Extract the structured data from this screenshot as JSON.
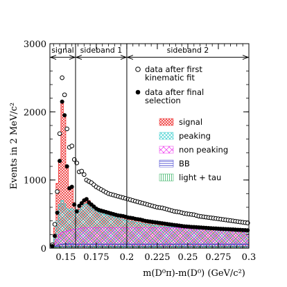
{
  "chart_data": {
    "type": "histogram",
    "title": "",
    "ylabel": "Events in 2 MeV/c²",
    "xlabel": "m(D⁰π)-m(D⁰) (GeV/c²)",
    "xlim": [
      0.137,
      0.3
    ],
    "ylim": [
      0,
      3000
    ],
    "x_ticks": [
      {
        "value": 0.15,
        "label": "0.15"
      },
      {
        "value": 0.175,
        "label": "0.175"
      },
      {
        "value": 0.2,
        "label": "0.2"
      },
      {
        "value": 0.225,
        "label": "0.225"
      },
      {
        "value": 0.25,
        "label": "0.25"
      },
      {
        "value": 0.275,
        "label": "0.275"
      },
      {
        "value": 0.3,
        "label": "0.3"
      }
    ],
    "y_ticks": [
      {
        "value": 0,
        "label": "0"
      },
      {
        "value": 1000,
        "label": "1000"
      },
      {
        "value": 2000,
        "label": "2000"
      },
      {
        "value": 3000,
        "label": "3000"
      }
    ],
    "regions": [
      {
        "label": "signal",
        "x_start": 0.137,
        "x_end": 0.158
      },
      {
        "label": "sideband 1",
        "x_start": 0.158,
        "x_end": 0.2
      },
      {
        "label": "sideband 2",
        "x_start": 0.2,
        "x_end": 0.3
      }
    ],
    "region_bracket_y": 2800,
    "region_dividers": [
      0.158,
      0.2
    ],
    "legend": {
      "markers": [
        {
          "key": "open",
          "lines": [
            "data after first",
            "kinematic fit"
          ]
        },
        {
          "key": "filled",
          "lines": [
            "data after final",
            "selection"
          ]
        }
      ],
      "fills": [
        {
          "key": "signal",
          "label": "signal",
          "color": "#ee3333"
        },
        {
          "key": "peaking",
          "label": "peaking",
          "color": "#33cccc"
        },
        {
          "key": "nonpeaking",
          "label": "non peaking",
          "color": "#ee33ee"
        },
        {
          "key": "bb",
          "label": "BB",
          "color": "#3333cc"
        },
        {
          "key": "light",
          "label": "light + tau",
          "color": "#22aa55"
        }
      ]
    },
    "x": [
      0.139,
      0.141,
      0.143,
      0.145,
      0.147,
      0.149,
      0.151,
      0.153,
      0.155,
      0.157,
      0.159,
      0.161,
      0.163,
      0.165,
      0.167,
      0.169,
      0.171,
      0.173,
      0.175,
      0.177,
      0.179,
      0.181,
      0.183,
      0.185,
      0.187,
      0.189,
      0.191,
      0.193,
      0.195,
      0.197,
      0.199,
      0.201,
      0.203,
      0.205,
      0.207,
      0.209,
      0.211,
      0.213,
      0.215,
      0.217,
      0.219,
      0.221,
      0.223,
      0.225,
      0.227,
      0.229,
      0.231,
      0.233,
      0.235,
      0.237,
      0.239,
      0.241,
      0.243,
      0.245,
      0.247,
      0.249,
      0.251,
      0.253,
      0.255,
      0.257,
      0.259,
      0.261,
      0.263,
      0.265,
      0.267,
      0.269,
      0.271,
      0.273,
      0.275,
      0.277,
      0.279,
      0.281,
      0.283,
      0.285,
      0.287,
      0.289,
      0.291,
      0.293,
      0.295,
      0.297,
      0.299
    ],
    "series": [
      {
        "name": "data after first kinematic fit",
        "marker": "open",
        "values": [
          50,
          350,
          830,
          1680,
          2500,
          2250,
          1750,
          1480,
          1500,
          1300,
          1250,
          1120,
          1130,
          1080,
          1000,
          980,
          960,
          930,
          900,
          880,
          860,
          840,
          820,
          800,
          790,
          780,
          770,
          760,
          750,
          740,
          730,
          720,
          710,
          700,
          690,
          680,
          670,
          660,
          650,
          640,
          630,
          620,
          610,
          600,
          595,
          590,
          580,
          570,
          560,
          550,
          540,
          535,
          530,
          520,
          510,
          505,
          500,
          495,
          490,
          480,
          470,
          465,
          460,
          455,
          450,
          445,
          440,
          435,
          430,
          425,
          420,
          415,
          410,
          405,
          400,
          395,
          390,
          385,
          380,
          375,
          370
        ]
      },
      {
        "name": "data after final selection",
        "marker": "filled",
        "values": [
          30,
          180,
          520,
          1280,
          2150,
          1950,
          1200,
          880,
          900,
          640,
          540,
          620,
          660,
          700,
          720,
          670,
          640,
          610,
          580,
          560,
          550,
          540,
          530,
          520,
          510,
          500,
          490,
          480,
          475,
          470,
          460,
          450,
          445,
          440,
          430,
          425,
          420,
          410,
          400,
          395,
          390,
          385,
          380,
          375,
          370,
          365,
          360,
          355,
          350,
          345,
          340,
          335,
          330,
          325,
          320,
          318,
          315,
          312,
          310,
          308,
          305,
          302,
          300,
          298,
          295,
          292,
          290,
          288,
          286,
          284,
          282,
          280,
          278,
          276,
          274,
          272,
          270,
          268,
          266,
          264,
          262
        ]
      },
      {
        "name": "light + tau",
        "fill": "light",
        "stack_top": true,
        "values": [
          5,
          10,
          15,
          18,
          20,
          20,
          20,
          20,
          20,
          20,
          20,
          20,
          20,
          20,
          20,
          20,
          20,
          20,
          20,
          20,
          20,
          20,
          20,
          20,
          20,
          20,
          20,
          20,
          20,
          20,
          20,
          20,
          20,
          20,
          20,
          20,
          20,
          20,
          20,
          20,
          20,
          20,
          20,
          20,
          20,
          20,
          20,
          20,
          20,
          20,
          20,
          20,
          20,
          20,
          20,
          20,
          20,
          20,
          20,
          20,
          20,
          20,
          20,
          20,
          20,
          20,
          20,
          20,
          20,
          20,
          20,
          20,
          20,
          20,
          20,
          20,
          20,
          20,
          20,
          20,
          20
        ]
      },
      {
        "name": "BB",
        "fill": "bb",
        "stack_top": true,
        "values": [
          10,
          25,
          40,
          55,
          60,
          62,
          62,
          62,
          62,
          60,
          60,
          60,
          60,
          60,
          60,
          60,
          60,
          60,
          60,
          60,
          60,
          60,
          60,
          60,
          60,
          60,
          60,
          60,
          60,
          60,
          60,
          60,
          60,
          60,
          60,
          60,
          60,
          60,
          60,
          60,
          60,
          60,
          60,
          60,
          60,
          60,
          60,
          60,
          60,
          60,
          60,
          60,
          60,
          60,
          60,
          60,
          60,
          60,
          60,
          60,
          60,
          60,
          60,
          60,
          60,
          60,
          60,
          60,
          60,
          60,
          60,
          60,
          60,
          60,
          60,
          60,
          60,
          60,
          60,
          60,
          60
        ]
      },
      {
        "name": "non peaking",
        "fill": "nonpeaking",
        "stack_top": true,
        "values": [
          20,
          70,
          130,
          200,
          230,
          240,
          250,
          260,
          270,
          280,
          280,
          290,
          295,
          300,
          300,
          300,
          300,
          300,
          300,
          300,
          300,
          300,
          300,
          300,
          300,
          300,
          300,
          300,
          300,
          300,
          300,
          300,
          300,
          300,
          300,
          300,
          300,
          300,
          300,
          300,
          300,
          300,
          300,
          300,
          300,
          300,
          300,
          300,
          300,
          300,
          300,
          298,
          296,
          294,
          292,
          290,
          288,
          286,
          284,
          282,
          280,
          278,
          276,
          274,
          272,
          270,
          268,
          266,
          264,
          262,
          260,
          258,
          256,
          254,
          252,
          250,
          248,
          246,
          244,
          242,
          240
        ]
      },
      {
        "name": "peaking",
        "fill": "peaking",
        "stack_top": true,
        "values": [
          40,
          200,
          400,
          640,
          700,
          650,
          580,
          560,
          580,
          560,
          520,
          560,
          600,
          640,
          650,
          620,
          590,
          570,
          550,
          530,
          510,
          500,
          490,
          480,
          470,
          460,
          450,
          440,
          430,
          420,
          410,
          400,
          395,
          390,
          380,
          375,
          370,
          360,
          355,
          350,
          345,
          340,
          335,
          330,
          325,
          320,
          318,
          316,
          314,
          312,
          310,
          308,
          306,
          304,
          302,
          300,
          298,
          296,
          294,
          292,
          290,
          288,
          286,
          284,
          282,
          280,
          278,
          276,
          274,
          272,
          270,
          268,
          266,
          264,
          262,
          260,
          258,
          256,
          254,
          252,
          250
        ]
      },
      {
        "name": "signal",
        "fill": "signal",
        "stack_top": true,
        "values": [
          50,
          300,
          950,
          1300,
          2150,
          1930,
          1200,
          900,
          900,
          670,
          560,
          620,
          680,
          720,
          740,
          700,
          660,
          630,
          600,
          580,
          560,
          550,
          540,
          530,
          520,
          510,
          500,
          490,
          480,
          475,
          465,
          455,
          450,
          440,
          432,
          426,
          420,
          412,
          405,
          398,
          392,
          386,
          380,
          376,
          372,
          366,
          360,
          356,
          350,
          346,
          342,
          338,
          334,
          328,
          324,
          320,
          316,
          312,
          310,
          308,
          305,
          302,
          300,
          298,
          295,
          292,
          290,
          288,
          286,
          284,
          282,
          280,
          278,
          276,
          274,
          272,
          270,
          268,
          266,
          264,
          262
        ]
      }
    ]
  }
}
